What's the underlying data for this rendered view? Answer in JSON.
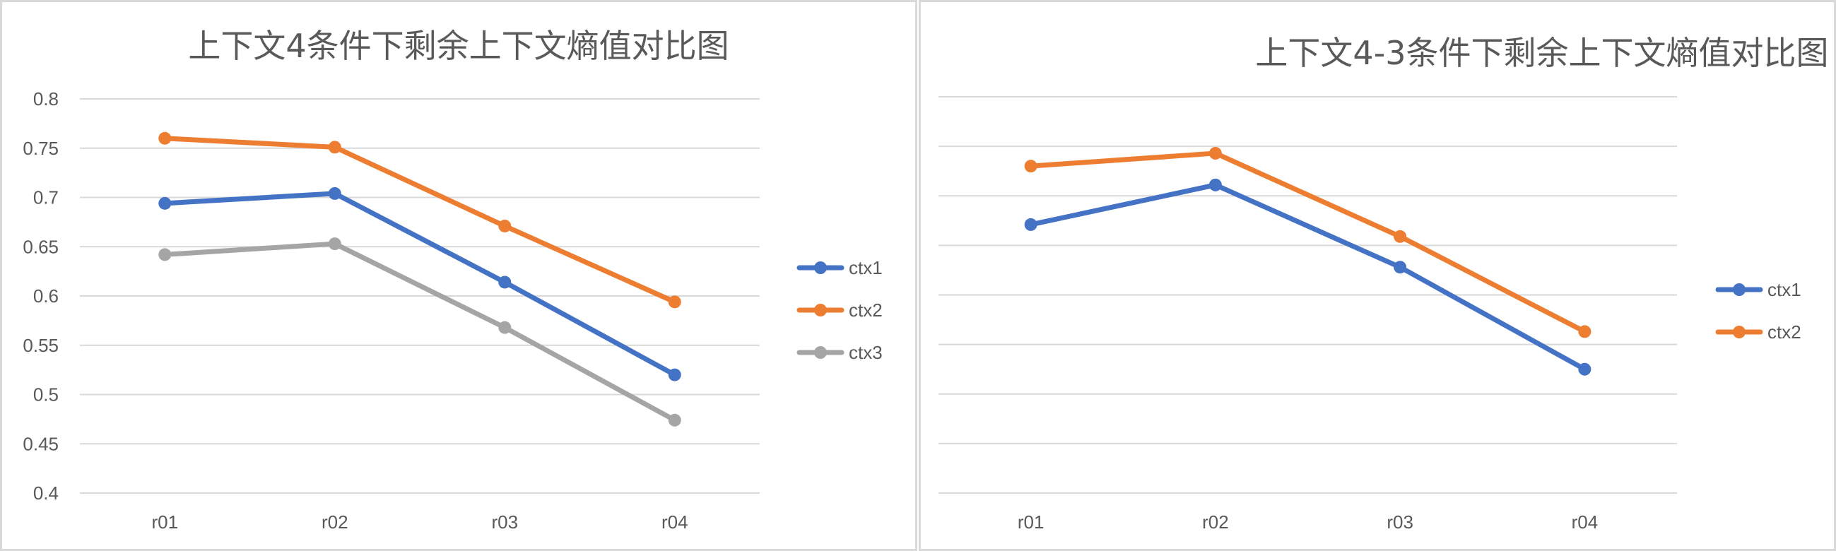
{
  "chart_data": [
    {
      "type": "line",
      "title": "上下文4条件下剩余上下文熵值对比图",
      "categories": [
        "r01",
        "r02",
        "r03",
        "r04"
      ],
      "ylim": [
        0.4,
        0.8
      ],
      "yticks": [
        "0.4",
        "0.45",
        "0.5",
        "0.55",
        "0.6",
        "0.65",
        "0.7",
        "0.75",
        "0.8"
      ],
      "grid": true,
      "legend_position": "right",
      "series": [
        {
          "name": "ctx1",
          "color": "#4472c4",
          "values": [
            0.694,
            0.704,
            0.614,
            0.52
          ]
        },
        {
          "name": "ctx2",
          "color": "#ed7d31",
          "values": [
            0.76,
            0.751,
            0.671,
            0.594
          ]
        },
        {
          "name": "ctx3",
          "color": "#a5a5a5",
          "values": [
            0.642,
            0.653,
            0.568,
            0.474
          ]
        }
      ]
    },
    {
      "type": "line",
      "title": "上下文4-3条件下剩余上下文熵值对比图",
      "categories": [
        "r01",
        "r02",
        "r03",
        "r04"
      ],
      "ylim": [
        0.3,
        0.7
      ],
      "yticks": [
        "0.3",
        "0.35",
        "0.4",
        "0.45",
        "0.5",
        "0.55",
        "0.6",
        "0.65",
        "0.7"
      ],
      "grid": true,
      "legend_position": "right",
      "series": [
        {
          "name": "ctx1",
          "color": "#4472c4",
          "values": [
            0.571,
            0.611,
            0.528,
            0.425
          ]
        },
        {
          "name": "ctx2",
          "color": "#ed7d31",
          "values": [
            0.63,
            0.643,
            0.559,
            0.463
          ]
        }
      ]
    }
  ]
}
